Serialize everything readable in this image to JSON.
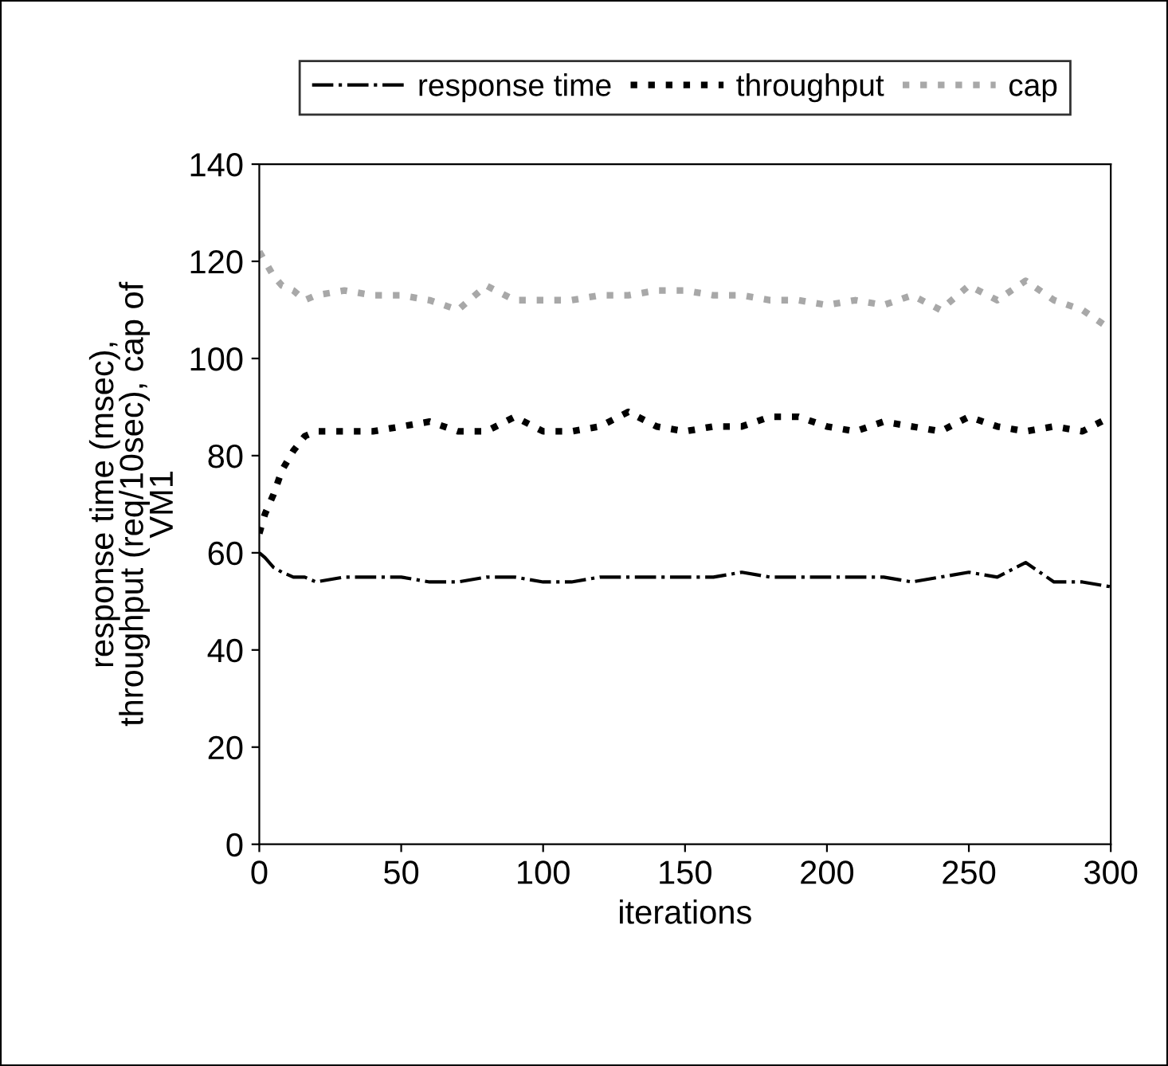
{
  "chart_data": {
    "type": "line",
    "xlabel": "iterations",
    "ylabel": "response time (msec),\nthroughput (req/10sec), cap of\nVM1",
    "x": [
      0,
      2,
      5,
      8,
      12,
      16,
      20,
      30,
      40,
      50,
      60,
      70,
      80,
      90,
      100,
      110,
      120,
      130,
      140,
      150,
      160,
      170,
      180,
      190,
      200,
      210,
      220,
      230,
      240,
      250,
      260,
      270,
      280,
      290,
      300
    ],
    "series": [
      {
        "name": "response time",
        "color": "#000000",
        "line_style": "dashdot",
        "values": [
          60,
          59,
          57,
          56,
          55,
          55,
          54,
          55,
          55,
          55,
          54,
          54,
          55,
          55,
          54,
          54,
          55,
          55,
          55,
          55,
          55,
          56,
          55,
          55,
          55,
          55,
          55,
          54,
          55,
          56,
          55,
          58,
          54,
          54,
          53
        ]
      },
      {
        "name": "throughput",
        "color": "#000000",
        "line_style": "dotted",
        "values": [
          64,
          68,
          72,
          77,
          81,
          84,
          85,
          85,
          85,
          86,
          87,
          85,
          85,
          88,
          85,
          85,
          86,
          89,
          86,
          85,
          86,
          86,
          88,
          88,
          86,
          85,
          87,
          86,
          85,
          88,
          86,
          85,
          86,
          85,
          88
        ]
      },
      {
        "name": "cap",
        "color": "#a8a8a8",
        "line_style": "dotted",
        "values": [
          122,
          120,
          117,
          115,
          114,
          112,
          113,
          114,
          113,
          113,
          112,
          110,
          115,
          112,
          112,
          112,
          113,
          113,
          114,
          114,
          113,
          113,
          112,
          112,
          111,
          112,
          111,
          113,
          110,
          115,
          112,
          116,
          112,
          110,
          106
        ]
      }
    ],
    "xlim": [
      0,
      300
    ],
    "xticks": [
      0,
      50,
      100,
      150,
      200,
      250,
      300
    ],
    "ylim": [
      0,
      140
    ],
    "yticks": [
      0,
      20,
      40,
      60,
      80,
      100,
      120,
      140
    ],
    "grid": false,
    "legend": "top",
    "marker": "none"
  }
}
